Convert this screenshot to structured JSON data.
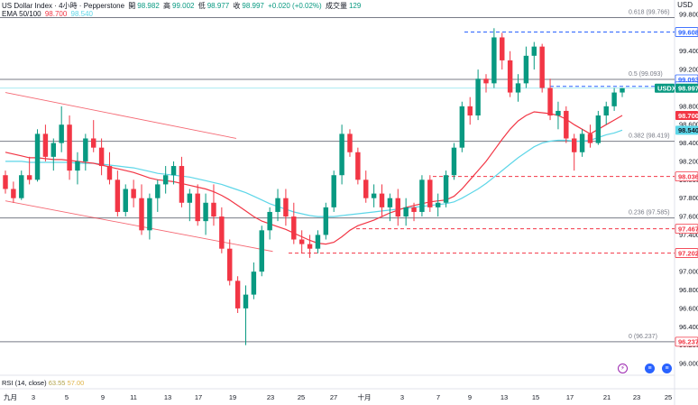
{
  "header": {
    "symbol": "US Dollar Index · 4小時 · Pepperstone",
    "o_label": "開",
    "o_value": "98.982",
    "h_label": "高",
    "h_value": "99.002",
    "l_label": "低",
    "l_value": "98.977",
    "c_label": "收",
    "c_value": "98.997",
    "change": "+0.020 (+0.02%)",
    "vol_label": "成交量",
    "vol_value": "129",
    "ema_label": "EMA 50/100",
    "ema50_value": "98.700",
    "ema100_value": "98.540"
  },
  "rsi": {
    "label": "RSI (14, close)",
    "v1": "63.55",
    "v2": "57.00"
  },
  "currency": "USD",
  "events": [
    {
      "name": "lightning-icon",
      "color": "#9c27b0"
    },
    {
      "name": "us-flag-icon",
      "color": "#2962ff"
    },
    {
      "name": "us-flag-icon",
      "color": "#2962ff"
    }
  ],
  "chart_data": {
    "type": "candlestick",
    "symbol": "USDX",
    "ylim": [
      96.0,
      99.8
    ],
    "yticks": [
      "99.800",
      "99.600",
      "99.400",
      "99.200",
      "99.000",
      "98.800",
      "98.600",
      "98.400",
      "98.200",
      "98.000",
      "97.800",
      "97.600",
      "97.400",
      "97.200",
      "97.000",
      "96.800",
      "96.600",
      "96.400",
      "96.200",
      "96.000"
    ],
    "xticks": [
      "九月",
      "3",
      "5",
      "9",
      "11",
      "13",
      "17",
      "19",
      "23",
      "25",
      "27",
      "十月",
      "3",
      "7",
      "9",
      "13",
      "15",
      "17",
      "21",
      "23",
      "25"
    ],
    "fib_levels": [
      {
        "label": "0.618 (99.766)",
        "value": 99.766
      },
      {
        "label": "0.5 (99.093)",
        "value": 99.093
      },
      {
        "label": "0.382 (98.419)",
        "value": 98.419
      },
      {
        "label": "0.236 (97.585)",
        "value": 97.585
      },
      {
        "label": "0 (96.237)",
        "value": 96.237
      }
    ],
    "price_tags": [
      {
        "value": "99.608",
        "color": "#2962ff",
        "text_color": "#2962ff",
        "filled": false
      },
      {
        "value": "99.093",
        "color": "#2962ff",
        "text_color": "#2962ff",
        "filled": false
      },
      {
        "value": "99.017",
        "color": "#2962ff",
        "text_color": "#2962ff",
        "filled": false
      },
      {
        "value": "98.997",
        "color": "#089981",
        "text_color": "#ffffff",
        "filled": true,
        "prefix": "USDX"
      },
      {
        "value": "98.700",
        "color": "#f23645",
        "text_color": "#ffffff",
        "filled": true
      },
      {
        "value": "98.540",
        "color": "#5dd6e8",
        "text_color": "#131722",
        "filled": true
      },
      {
        "value": "98.036",
        "color": "#f23645",
        "text_color": "#f23645",
        "filled": false
      },
      {
        "value": "97.467",
        "color": "#f23645",
        "text_color": "#f23645",
        "filled": false
      },
      {
        "value": "97.202",
        "color": "#f23645",
        "text_color": "#f23645",
        "filled": false
      },
      {
        "value": "96.237",
        "color": "#f23645",
        "text_color": "#f23645",
        "filled": false
      }
    ],
    "candles": [
      [
        98.05,
        98.1,
        97.85,
        97.9
      ],
      [
        97.9,
        97.98,
        97.75,
        97.8
      ],
      [
        97.8,
        98.1,
        97.78,
        98.05
      ],
      [
        98.05,
        98.25,
        97.95,
        98.0
      ],
      [
        98.0,
        98.55,
        97.98,
        98.5
      ],
      [
        98.5,
        98.6,
        98.2,
        98.25
      ],
      [
        98.25,
        98.45,
        98.1,
        98.4
      ],
      [
        98.4,
        98.8,
        98.3,
        98.6
      ],
      [
        98.6,
        98.7,
        98.0,
        98.1
      ],
      [
        98.1,
        98.3,
        97.95,
        98.2
      ],
      [
        98.2,
        98.5,
        98.1,
        98.45
      ],
      [
        98.45,
        98.65,
        98.3,
        98.35
      ],
      [
        98.35,
        98.45,
        98.05,
        98.15
      ],
      [
        98.15,
        98.3,
        97.95,
        98.0
      ],
      [
        98.0,
        98.1,
        97.6,
        97.65
      ],
      [
        97.65,
        97.95,
        97.6,
        97.9
      ],
      [
        97.9,
        98.0,
        97.7,
        97.8
      ],
      [
        97.8,
        97.95,
        97.4,
        97.45
      ],
      [
        97.45,
        97.85,
        97.35,
        97.8
      ],
      [
        97.8,
        98.0,
        97.65,
        97.95
      ],
      [
        97.95,
        98.15,
        97.85,
        98.05
      ],
      [
        98.05,
        98.2,
        97.95,
        98.15
      ],
      [
        98.15,
        98.25,
        97.7,
        97.75
      ],
      [
        97.75,
        97.9,
        97.55,
        97.85
      ],
      [
        97.85,
        97.95,
        97.5,
        97.55
      ],
      [
        97.55,
        97.85,
        97.4,
        97.75
      ],
      [
        97.75,
        97.95,
        97.5,
        97.6
      ],
      [
        97.6,
        97.7,
        97.2,
        97.25
      ],
      [
        97.25,
        97.35,
        96.85,
        96.9
      ],
      [
        96.9,
        96.95,
        96.55,
        96.6
      ],
      [
        96.6,
        96.85,
        96.2,
        96.75
      ],
      [
        96.75,
        97.1,
        96.7,
        97.0
      ],
      [
        97.0,
        97.5,
        96.95,
        97.45
      ],
      [
        97.45,
        97.7,
        97.35,
        97.65
      ],
      [
        97.65,
        97.9,
        97.55,
        97.8
      ],
      [
        97.8,
        97.9,
        97.5,
        97.6
      ],
      [
        97.6,
        97.75,
        97.3,
        97.35
      ],
      [
        97.35,
        97.45,
        97.2,
        97.3
      ],
      [
        97.3,
        97.4,
        97.15,
        97.25
      ],
      [
        97.25,
        97.45,
        97.2,
        97.4
      ],
      [
        97.4,
        97.75,
        97.35,
        97.7
      ],
      [
        97.7,
        98.1,
        97.65,
        98.05
      ],
      [
        98.05,
        98.6,
        97.95,
        98.5
      ],
      [
        98.5,
        98.55,
        98.25,
        98.3
      ],
      [
        98.3,
        98.35,
        97.95,
        98.0
      ],
      [
        98.0,
        98.1,
        97.75,
        97.8
      ],
      [
        97.8,
        97.95,
        97.7,
        97.85
      ],
      [
        97.85,
        97.95,
        97.6,
        97.7
      ],
      [
        97.7,
        97.85,
        97.55,
        97.8
      ],
      [
        97.8,
        97.9,
        97.5,
        97.6
      ],
      [
        97.6,
        97.8,
        97.5,
        97.7
      ],
      [
        97.7,
        97.75,
        97.55,
        97.65
      ],
      [
        97.65,
        98.05,
        97.6,
        98.0
      ],
      [
        98.0,
        98.05,
        97.65,
        97.7
      ],
      [
        97.7,
        97.85,
        97.6,
        97.75
      ],
      [
        97.75,
        98.1,
        97.7,
        98.05
      ],
      [
        98.05,
        98.4,
        98.0,
        98.35
      ],
      [
        98.35,
        98.85,
        98.3,
        98.8
      ],
      [
        98.8,
        98.9,
        98.6,
        98.7
      ],
      [
        98.7,
        99.2,
        98.65,
        99.1
      ],
      [
        99.1,
        99.15,
        98.95,
        99.05
      ],
      [
        99.05,
        99.65,
        99.0,
        99.55
      ],
      [
        99.55,
        99.6,
        99.2,
        99.3
      ],
      [
        99.3,
        99.4,
        98.9,
        98.95
      ],
      [
        98.95,
        99.15,
        98.85,
        99.05
      ],
      [
        99.05,
        99.45,
        99.0,
        99.35
      ],
      [
        99.35,
        99.5,
        99.2,
        99.45
      ],
      [
        99.45,
        99.48,
        98.95,
        99.0
      ],
      [
        99.0,
        99.1,
        98.65,
        98.7
      ],
      [
        98.7,
        98.85,
        98.55,
        98.75
      ],
      [
        98.75,
        98.8,
        98.4,
        98.45
      ],
      [
        98.45,
        98.5,
        98.1,
        98.3
      ],
      [
        98.3,
        98.55,
        98.25,
        98.5
      ],
      [
        98.5,
        98.6,
        98.35,
        98.4
      ],
      [
        98.4,
        98.75,
        98.38,
        98.7
      ],
      [
        98.7,
        98.85,
        98.6,
        98.8
      ],
      [
        98.8,
        99.0,
        98.75,
        98.95
      ],
      [
        98.95,
        99.0,
        98.9,
        98.997
      ]
    ],
    "ema50": [
      98.3,
      98.28,
      98.26,
      98.24,
      98.24,
      98.23,
      98.22,
      98.22,
      98.21,
      98.2,
      98.19,
      98.18,
      98.16,
      98.14,
      98.12,
      98.1,
      98.08,
      98.05,
      98.02,
      98.0,
      97.99,
      97.98,
      97.96,
      97.94,
      97.92,
      97.9,
      97.87,
      97.83,
      97.78,
      97.72,
      97.66,
      97.6,
      97.55,
      97.52,
      97.49,
      97.46,
      97.42,
      97.38,
      97.34,
      97.31,
      97.3,
      97.32,
      97.38,
      97.45,
      97.5,
      97.53,
      97.56,
      97.6,
      97.64,
      97.67,
      97.7,
      97.72,
      97.74,
      97.76,
      97.77,
      97.78,
      97.82,
      97.9,
      98.0,
      98.1,
      98.2,
      98.32,
      98.44,
      98.55,
      98.64,
      98.7,
      98.74,
      98.73,
      98.72,
      98.7,
      98.66,
      98.6,
      98.55,
      98.5,
      98.55,
      98.6,
      98.65,
      98.7
    ],
    "ema100": [
      98.2,
      98.2,
      98.2,
      98.19,
      98.19,
      98.19,
      98.19,
      98.19,
      98.19,
      98.18,
      98.18,
      98.18,
      98.17,
      98.16,
      98.15,
      98.14,
      98.13,
      98.11,
      98.09,
      98.07,
      98.06,
      98.05,
      98.04,
      98.03,
      98.01,
      97.99,
      97.97,
      97.95,
      97.92,
      97.89,
      97.86,
      97.82,
      97.78,
      97.74,
      97.71,
      97.68,
      97.65,
      97.63,
      97.61,
      97.6,
      97.6,
      97.6,
      97.61,
      97.62,
      97.63,
      97.64,
      97.65,
      97.66,
      97.67,
      97.68,
      97.69,
      97.7,
      97.71,
      97.72,
      97.73,
      97.74,
      97.76,
      97.8,
      97.85,
      97.9,
      97.96,
      98.03,
      98.1,
      98.17,
      98.24,
      98.3,
      98.36,
      98.4,
      98.42,
      98.43,
      98.43,
      98.42,
      98.42,
      98.43,
      98.46,
      98.49,
      98.51,
      98.54
    ],
    "channel_upper": [
      [
        0,
        98.95
      ],
      [
        26,
        98.45
      ]
    ],
    "channel_lower": [
      [
        0,
        97.77
      ],
      [
        30,
        97.22
      ]
    ],
    "ema50_color": "#f23645",
    "ema100_color": "#5dd6e8",
    "up_color": "#089981",
    "down_color": "#f23645"
  }
}
